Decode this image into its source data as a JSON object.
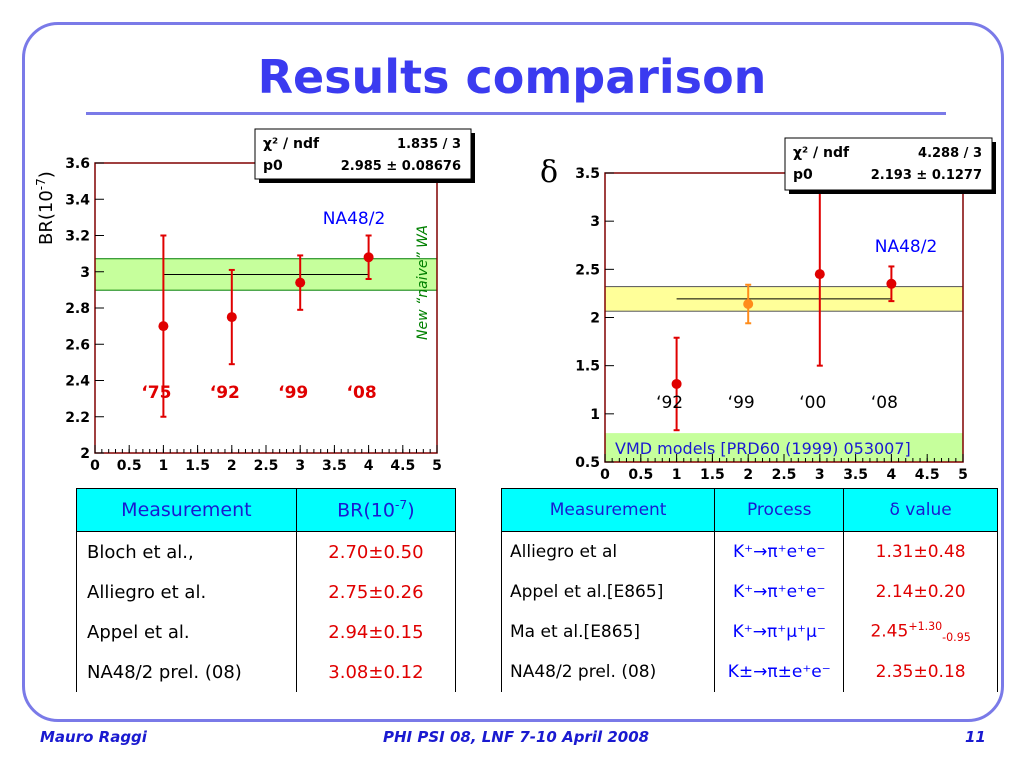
{
  "page": {
    "title": "Results comparison"
  },
  "chart_data": [
    {
      "type": "scatter",
      "title": "",
      "ylabel": "BR(10",
      "ylabel_sup": "-7",
      "ylabel_end": ")",
      "xlim": [
        0,
        5
      ],
      "ylim": [
        2,
        3.6
      ],
      "xticks": [
        "0",
        "0.5",
        "1",
        "1.5",
        "2",
        "2.5",
        "3",
        "3.5",
        "4",
        "4.5",
        "5"
      ],
      "yticks": [
        "2",
        "2.2",
        "2.4",
        "2.6",
        "2.8",
        "3",
        "3.2",
        "3.4",
        "3.6"
      ],
      "points": [
        {
          "x": 1,
          "y": 2.7,
          "err_low": 0.5,
          "err_high": 0.5,
          "label": "‘75"
        },
        {
          "x": 2,
          "y": 2.75,
          "err_low": 0.26,
          "err_high": 0.26,
          "label": "‘92"
        },
        {
          "x": 3,
          "y": 2.94,
          "err_low": 0.15,
          "err_high": 0.15,
          "label": "‘99"
        },
        {
          "x": 4,
          "y": 3.08,
          "err_low": 0.12,
          "err_high": 0.12,
          "label": "‘08"
        }
      ],
      "fit": {
        "value": 2.985,
        "error": 0.08676,
        "x_range": [
          1,
          4
        ]
      },
      "stats": {
        "chi2_label": "χ² / ndf",
        "chi2_value": "1.835 / 3",
        "p0_label": "p0",
        "p0_value": "2.985 ± 0.08676"
      },
      "annotations": {
        "experiment": "NA48/2",
        "wa_label": "New “naive” WA"
      },
      "colors": {
        "points": "#e00000",
        "band": "#c6ff9c",
        "band_line": "#008000",
        "frame": "#800000"
      }
    },
    {
      "type": "scatter",
      "title": "",
      "ylabel": "δ",
      "xlim": [
        0,
        5
      ],
      "ylim": [
        0.5,
        3.5
      ],
      "xticks": [
        "0",
        "0.5",
        "1",
        "1.5",
        "2",
        "2.5",
        "3",
        "3.5",
        "4",
        "4.5",
        "5"
      ],
      "yticks": [
        "0.5",
        "1",
        "1.5",
        "2",
        "2.5",
        "3",
        "3.5"
      ],
      "points": [
        {
          "x": 1,
          "y": 1.31,
          "err_low": 0.48,
          "err_high": 0.48,
          "label": "‘92",
          "color": "#e00000"
        },
        {
          "x": 2,
          "y": 2.14,
          "err_low": 0.2,
          "err_high": 0.2,
          "label": "‘99",
          "color": "#ff8c1a"
        },
        {
          "x": 3,
          "y": 2.45,
          "err_low": 0.95,
          "err_high": 1.3,
          "label": "‘00",
          "color": "#e00000"
        },
        {
          "x": 4,
          "y": 2.35,
          "err_low": 0.18,
          "err_high": 0.18,
          "label": "‘08",
          "color": "#e00000"
        }
      ],
      "fit": {
        "value": 2.193,
        "error": 0.1277,
        "x_range": [
          1,
          4
        ]
      },
      "stats": {
        "chi2_label": "χ² / ndf",
        "chi2_value": "4.288 / 3",
        "p0_label": "p0",
        "p0_value": "2.193 ± 0.1277"
      },
      "annotations": {
        "experiment": "NA48/2",
        "vmd_label": "VMD models [PRD60 (1999) 053007]"
      },
      "vmd_band": [
        0.5,
        0.8
      ],
      "colors": {
        "band": "#ffff99",
        "vmd_band": "#c6ff9c",
        "frame": "#800000"
      }
    }
  ],
  "table_br": {
    "headers": [
      "Measurement",
      "BR(10",
      "-7",
      ")"
    ],
    "rows": [
      {
        "name": "Bloch et al.,",
        "value": "2.70±0.50"
      },
      {
        "name": "Alliegro et al.",
        "value": "2.75±0.26"
      },
      {
        "name": "Appel et al.",
        "value": "2.94±0.15"
      },
      {
        "name": "NA48/2 prel. (08)",
        "value": "3.08±0.12"
      }
    ]
  },
  "table_delta": {
    "headers": [
      "Measurement",
      "Process",
      "δ value"
    ],
    "rows": [
      {
        "name": "Alliegro et al",
        "process": "K⁺→π⁺e⁺e⁻",
        "value": "1.31±0.48"
      },
      {
        "name": "Appel et al.[E865]",
        "process": "K⁺→π⁺e⁺e⁻",
        "value": "2.14±0.20"
      },
      {
        "name": "Ma et al.[E865]",
        "process": "K⁺→π⁺μ⁺μ⁻",
        "value": "2.45",
        "value_sup": "+1.30",
        "value_sub": "-0.95"
      },
      {
        "name": "NA48/2 prel. (08)",
        "process": "K±→π±e⁺e⁻",
        "value": "2.35±0.18"
      }
    ]
  },
  "footer": {
    "author": "Mauro Raggi",
    "conference": "PHI PSI 08, LNF 7-10 April 2008",
    "page": "11"
  }
}
